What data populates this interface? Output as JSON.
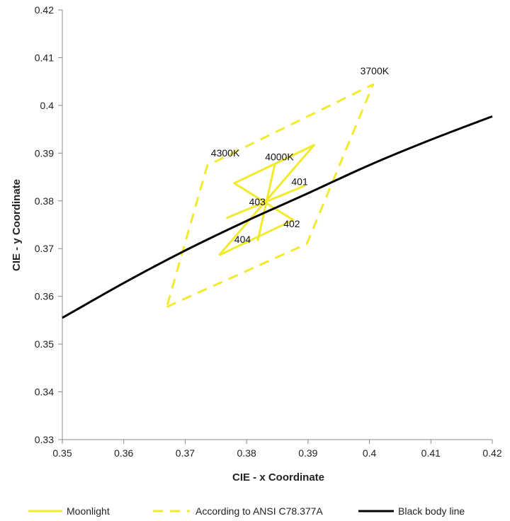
{
  "chart_data": {
    "type": "line",
    "xlabel": "CIE - x Coordinate",
    "ylabel": "CIE - y Coordinate",
    "xlim": [
      0.35,
      0.42
    ],
    "ylim": [
      0.33,
      0.42
    ],
    "xticks": [
      0.35,
      0.36,
      0.37,
      0.38,
      0.39,
      0.4,
      0.41,
      0.42
    ],
    "xtick_labels": [
      "0.35",
      "0.36",
      "0.37",
      "0.38",
      "0.39",
      "0.4",
      "0.41",
      "0.42"
    ],
    "yticks": [
      0.33,
      0.34,
      0.35,
      0.36,
      0.37,
      0.38,
      0.39,
      0.4,
      0.41,
      0.42
    ],
    "ytick_labels": [
      "0.33",
      "0.34",
      "0.35",
      "0.36",
      "0.37",
      "0.38",
      "0.39",
      "0.4",
      "0.41",
      "0.42"
    ],
    "grid": false,
    "legend_position": "bottom",
    "series": [
      {
        "name": "Moonlight",
        "color": "#f2ea2c",
        "style": "solid",
        "polylines": [
          [
            [
              0.3755,
              0.3686
            ],
            [
              0.391,
              0.3917
            ],
            [
              0.378,
              0.3837
            ],
            [
              0.3876,
              0.376
            ],
            [
              0.3755,
              0.3686
            ]
          ],
          [
            [
              0.3818,
              0.3716
            ],
            [
              0.3846,
              0.3877
            ]
          ],
          [
            [
              0.3767,
              0.3764
            ],
            [
              0.3895,
              0.3832
            ]
          ]
        ]
      },
      {
        "name": "According to ANSI C78.377A",
        "color": "#f2ea2c",
        "style": "dashed",
        "polylines": [
          [
            [
              0.367,
              0.3578
            ],
            [
              0.3898,
              0.371
            ],
            [
              0.4006,
              0.4044
            ],
            [
              0.3736,
              0.3874
            ],
            [
              0.367,
              0.3578
            ]
          ]
        ]
      },
      {
        "name": "Black body line",
        "color": "#000000",
        "style": "solid",
        "points": [
          [
            0.35,
            0.3555
          ],
          [
            0.36,
            0.3628
          ],
          [
            0.37,
            0.3696
          ],
          [
            0.38,
            0.3758
          ],
          [
            0.39,
            0.3816
          ],
          [
            0.4,
            0.3875
          ],
          [
            0.41,
            0.3928
          ],
          [
            0.42,
            0.3977
          ]
        ]
      }
    ],
    "annotations": [
      {
        "text": "3700K",
        "x": 0.3985,
        "y": 0.4065
      },
      {
        "text": "4300K",
        "x": 0.3742,
        "y": 0.3893
      },
      {
        "text": "4000K",
        "x": 0.383,
        "y": 0.3885
      },
      {
        "text": "401",
        "x": 0.3873,
        "y": 0.3833
      },
      {
        "text": "403",
        "x": 0.3804,
        "y": 0.3791
      },
      {
        "text": "402",
        "x": 0.386,
        "y": 0.3745
      },
      {
        "text": "404",
        "x": 0.378,
        "y": 0.3712
      }
    ]
  }
}
